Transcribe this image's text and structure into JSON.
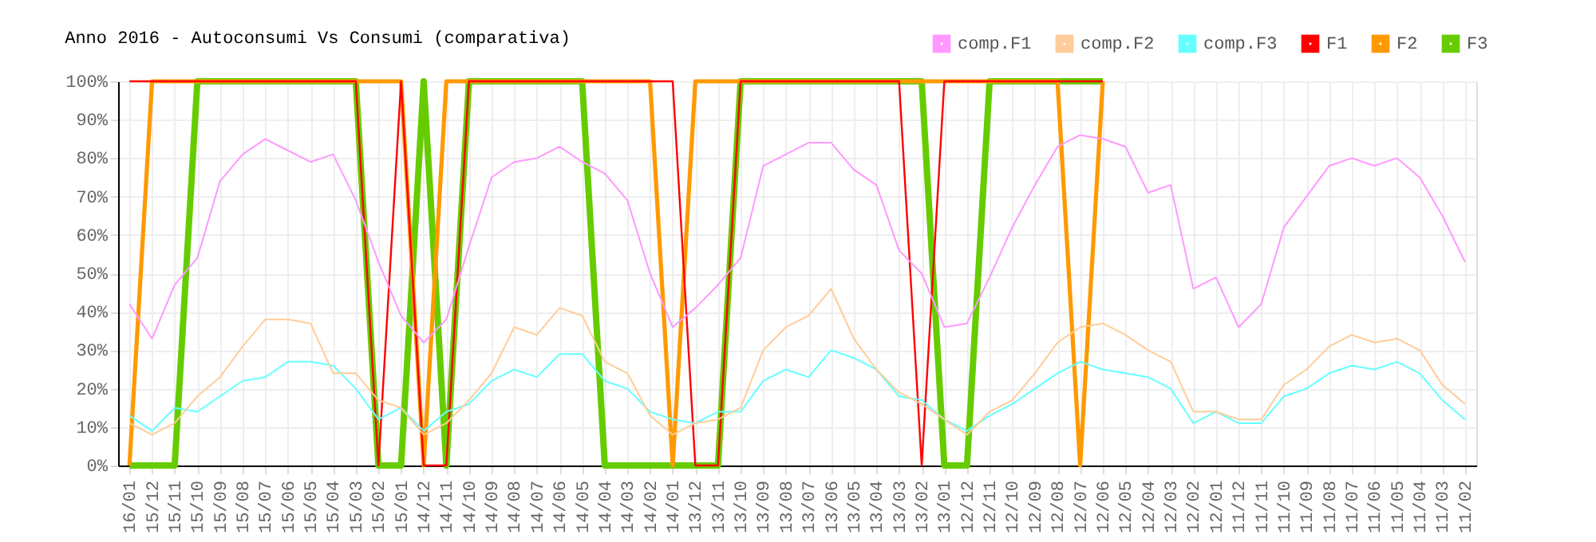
{
  "chart_data": {
    "type": "line",
    "title": "Anno 2016 - Autoconsumi Vs Consumi (comparativa)",
    "categories": [
      "16/01",
      "15/12",
      "15/11",
      "15/10",
      "15/09",
      "15/08",
      "15/07",
      "15/06",
      "15/05",
      "15/04",
      "15/03",
      "15/02",
      "15/01",
      "14/12",
      "14/11",
      "14/10",
      "14/09",
      "14/08",
      "14/07",
      "14/06",
      "14/05",
      "14/04",
      "14/03",
      "14/02",
      "14/01",
      "13/12",
      "13/11",
      "13/10",
      "13/09",
      "13/08",
      "13/07",
      "13/06",
      "13/05",
      "13/04",
      "13/03",
      "13/02",
      "13/01",
      "12/12",
      "12/11",
      "12/10",
      "12/09",
      "12/08",
      "12/07",
      "12/06",
      "12/05",
      "12/04",
      "12/03",
      "12/02",
      "12/01",
      "11/12",
      "11/11",
      "11/10",
      "11/09",
      "11/08",
      "11/07",
      "11/06",
      "11/05",
      "11/04",
      "11/03",
      "11/02"
    ],
    "series": [
      {
        "name": "comp.F1",
        "color": "#ff99ff",
        "values": [
          42,
          33,
          47,
          54,
          74,
          81,
          85,
          82,
          79,
          81,
          69,
          53,
          39,
          32,
          38,
          57,
          75,
          79,
          80,
          83,
          79,
          76,
          69,
          50,
          36,
          41,
          47,
          54,
          78,
          81,
          84,
          84,
          77,
          73,
          56,
          50,
          36,
          37,
          49,
          62,
          73,
          83,
          86,
          85,
          83,
          71,
          73,
          46,
          49,
          36,
          42,
          62,
          70,
          78,
          80,
          78,
          80,
          75,
          65,
          53
        ]
      },
      {
        "name": "comp.F2",
        "color": "#ffcc99",
        "values": [
          11,
          8,
          11,
          18,
          23,
          31,
          38,
          38,
          37,
          24,
          24,
          17,
          15,
          8,
          11,
          17,
          24,
          36,
          34,
          41,
          39,
          27,
          24,
          13,
          8,
          11,
          12,
          15,
          30,
          36,
          39,
          46,
          33,
          25,
          19,
          16,
          12,
          8,
          14,
          17,
          24,
          32,
          36,
          37,
          34,
          30,
          27,
          14,
          14,
          12,
          12,
          21,
          25,
          31,
          34,
          32,
          33,
          30,
          21,
          16
        ]
      },
      {
        "name": "comp.F3",
        "color": "#66ffff",
        "values": [
          13,
          9,
          15,
          14,
          18,
          22,
          23,
          27,
          27,
          26,
          20,
          12,
          15,
          9,
          14,
          16,
          22,
          25,
          23,
          29,
          29,
          22,
          20,
          14,
          12,
          11,
          14,
          14,
          22,
          25,
          23,
          30,
          28,
          25,
          18,
          17,
          12,
          9,
          13,
          16,
          20,
          24,
          27,
          25,
          24,
          23,
          20,
          11,
          14,
          11,
          11,
          18,
          20,
          24,
          26,
          25,
          27,
          24,
          17,
          12
        ]
      },
      {
        "name": "F1",
        "color": "#ff0000",
        "values": [
          100,
          100,
          100,
          100,
          100,
          100,
          100,
          100,
          100,
          100,
          100,
          0,
          100,
          0,
          0,
          100,
          100,
          100,
          100,
          100,
          100,
          100,
          100,
          100,
          100,
          0,
          0,
          100,
          100,
          100,
          100,
          100,
          100,
          100,
          100,
          0,
          100,
          100,
          100,
          100,
          100,
          100,
          100,
          100,
          null,
          null,
          null,
          null,
          null,
          null,
          null,
          null,
          null,
          null,
          null,
          null,
          null,
          null,
          null,
          null
        ]
      },
      {
        "name": "F2",
        "color": "#ff9900",
        "values": [
          0,
          100,
          100,
          100,
          100,
          100,
          100,
          100,
          100,
          100,
          100,
          100,
          100,
          0,
          100,
          100,
          100,
          100,
          100,
          100,
          100,
          100,
          100,
          100,
          0,
          100,
          100,
          100,
          100,
          100,
          100,
          100,
          100,
          100,
          100,
          100,
          100,
          100,
          100,
          100,
          100,
          100,
          0,
          100,
          null,
          null,
          null,
          null,
          null,
          null,
          null,
          null,
          null,
          null,
          null,
          null,
          null,
          null,
          null,
          null
        ]
      },
      {
        "name": "F3",
        "color": "#66cc00",
        "values": [
          0,
          0,
          0,
          100,
          100,
          100,
          100,
          100,
          100,
          100,
          100,
          0,
          0,
          100,
          0,
          100,
          100,
          100,
          100,
          100,
          100,
          0,
          0,
          0,
          0,
          0,
          0,
          100,
          100,
          100,
          100,
          100,
          100,
          100,
          100,
          100,
          0,
          0,
          100,
          100,
          100,
          100,
          100,
          100,
          null,
          null,
          null,
          null,
          null,
          null,
          null,
          null,
          null,
          null,
          null,
          null,
          null,
          null,
          null,
          null
        ]
      }
    ],
    "ylim": [
      0,
      100
    ],
    "yticks": [
      {
        "value": 0,
        "label": "0%"
      },
      {
        "value": 10,
        "label": "10%"
      },
      {
        "value": 20,
        "label": "20%"
      },
      {
        "value": 30,
        "label": "30%"
      },
      {
        "value": 40,
        "label": "40%"
      },
      {
        "value": 50,
        "label": "50%"
      },
      {
        "value": 60,
        "label": "60%"
      },
      {
        "value": 70,
        "label": "70%"
      },
      {
        "value": 80,
        "label": "80%"
      },
      {
        "value": 90,
        "label": "90%"
      },
      {
        "value": 100,
        "label": "100%"
      }
    ],
    "grid": true,
    "legend": "top right",
    "marker": "none",
    "line_style": "solid"
  }
}
